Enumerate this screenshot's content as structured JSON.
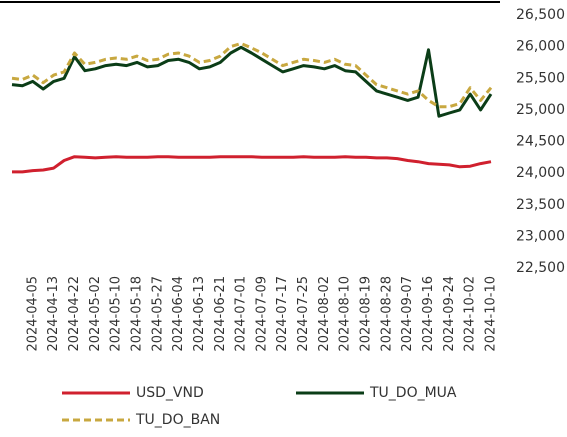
{
  "chart_data": {
    "type": "line",
    "categories": [
      null,
      null,
      "2024-04-05",
      null,
      "2024-04-13",
      null,
      "2024-04-22",
      null,
      "2024-05-02",
      null,
      "2024-05-10",
      null,
      "2024-05-18",
      null,
      "2024-05-27",
      null,
      "2024-06-04",
      null,
      "2024-06-13",
      null,
      "2024-06-21",
      null,
      "2024-07-01",
      null,
      "2024-07-09",
      null,
      "2024-07-17",
      null,
      "2024-07-25",
      null,
      "2024-08-02",
      null,
      "2024-08-10",
      null,
      "2024-08-19",
      null,
      "2024-08-28",
      null,
      "2024-09-07",
      null,
      "2024-09-16",
      null,
      "2024-09-24",
      null,
      "2024-10-02",
      null,
      "2024-10-10"
    ],
    "series": [
      {
        "name": "USD_VND",
        "color": "#d0202e",
        "dash": false,
        "values": [
          24020,
          24020,
          24040,
          24050,
          24080,
          24200,
          24260,
          24250,
          24240,
          24250,
          24260,
          24250,
          24250,
          24250,
          24260,
          24260,
          24250,
          24250,
          24250,
          24250,
          24260,
          24260,
          24260,
          24260,
          24250,
          24250,
          24250,
          24250,
          24260,
          24250,
          24250,
          24250,
          24260,
          24250,
          24250,
          24240,
          24240,
          24230,
          24200,
          24180,
          24150,
          24140,
          24130,
          24100,
          24110,
          24150,
          24180
        ]
      },
      {
        "name": "TU_DO_MUA",
        "color": "#0b3d17",
        "dash": false,
        "values": [
          25400,
          25380,
          25450,
          25330,
          25450,
          25500,
          25840,
          25620,
          25650,
          25700,
          25720,
          25700,
          25750,
          25680,
          25700,
          25780,
          25800,
          25750,
          25650,
          25680,
          25750,
          25900,
          25990,
          25900,
          25800,
          25700,
          25600,
          25650,
          25700,
          25680,
          25650,
          25700,
          25620,
          25600,
          25450,
          25300,
          25250,
          25200,
          25150,
          25200,
          25950,
          24900,
          24950,
          25000,
          25250,
          25000,
          25250
        ]
      },
      {
        "name": "TU_DO_BAN",
        "color": "#c8a840",
        "dash": true,
        "values": [
          25500,
          25480,
          25550,
          25430,
          25550,
          25600,
          25900,
          25720,
          25750,
          25800,
          25820,
          25800,
          25850,
          25780,
          25800,
          25880,
          25900,
          25850,
          25750,
          25780,
          25850,
          26000,
          26050,
          25980,
          25900,
          25800,
          25700,
          25750,
          25800,
          25780,
          25750,
          25800,
          25720,
          25700,
          25550,
          25400,
          25350,
          25300,
          25250,
          25300,
          25150,
          25050,
          25050,
          25100,
          25350,
          25150,
          25350
        ]
      }
    ],
    "ylim": [
      22500,
      26500
    ],
    "yticks": [
      {
        "value": 22500,
        "label": "22,500"
      },
      {
        "value": 23000,
        "label": "23,000"
      },
      {
        "value": 23500,
        "label": "23,500"
      },
      {
        "value": 24000,
        "label": "24,000"
      },
      {
        "value": 24500,
        "label": "24,500"
      },
      {
        "value": 25000,
        "label": "25,000"
      },
      {
        "value": 25500,
        "label": "25,500"
      },
      {
        "value": 26000,
        "label": "26,000"
      },
      {
        "value": 26500,
        "label": "26,500"
      }
    ],
    "grid": false
  }
}
